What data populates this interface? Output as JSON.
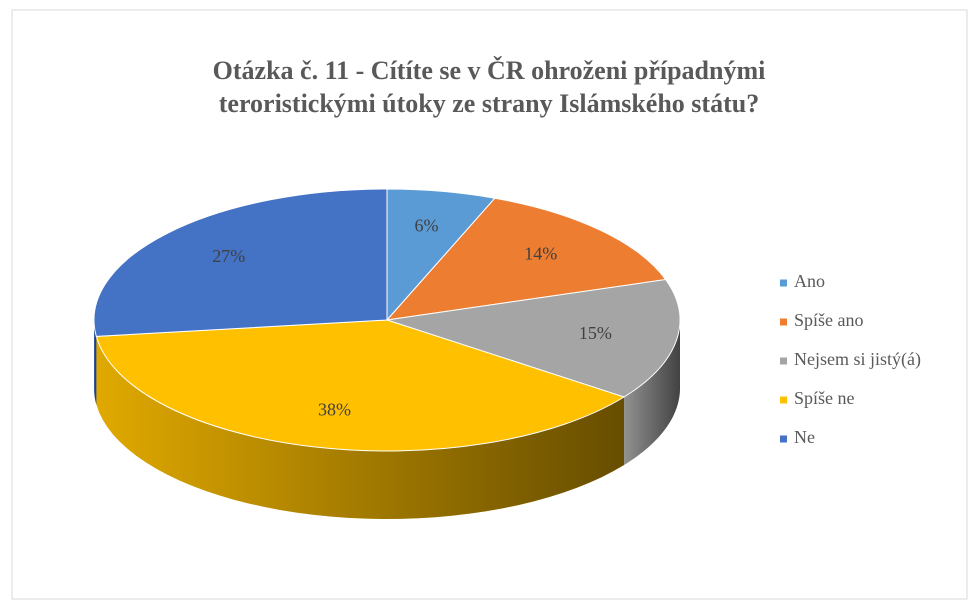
{
  "chart_data": {
    "type": "pie",
    "title": "Otázka č. 11 - Cítíte se v ČR ohroženi případnými teroristickými útoky ze strany Islámského státu?",
    "categories": [
      "Ano",
      "Spíše ano",
      "Nejsem si jistý(á)",
      "Spíše ne",
      "Ne"
    ],
    "values": [
      6,
      14,
      15,
      38,
      27
    ],
    "value_labels": [
      "6%",
      "14%",
      "15%",
      "38%",
      "27%"
    ],
    "colors": [
      "#5b9bd5",
      "#ed7d31",
      "#a5a5a5",
      "#ffc000",
      "#4472c4"
    ],
    "legend": "right"
  }
}
